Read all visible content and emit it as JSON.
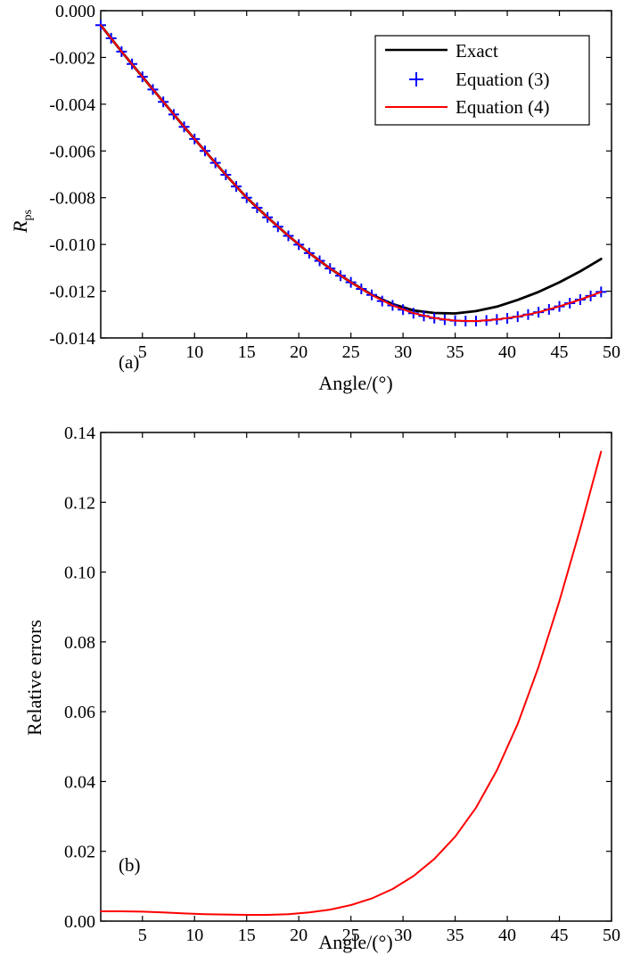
{
  "colors": {
    "exact": "#000000",
    "equation3": "#0000ff",
    "equation4": "#ff0000",
    "axis": "#000000",
    "background": "#ffffff"
  },
  "chart_data": [
    {
      "type": "line",
      "panel_label": "(a)",
      "xlabel": "Angle/(°)",
      "ylabel": "R",
      "ylabel_sub": "ps",
      "xlim": [
        1,
        50
      ],
      "ylim": [
        -0.014,
        0.0
      ],
      "xticks": [
        5,
        10,
        15,
        20,
        25,
        30,
        35,
        40,
        45,
        50
      ],
      "xtick_labels": [
        "5",
        "10",
        "15",
        "20",
        "25",
        "30",
        "35",
        "40",
        "45",
        "50"
      ],
      "yticks": [
        0.0,
        -0.002,
        -0.004,
        -0.006,
        -0.008,
        -0.01,
        -0.012,
        -0.014
      ],
      "ytick_labels": [
        "0.000",
        "-0.002",
        "-0.004",
        "-0.006",
        "-0.008",
        "-0.010",
        "-0.012",
        "-0.014"
      ],
      "grid": false,
      "legend_position": "top-right",
      "legend": [
        "Exact",
        "Equation (3)",
        "Equation (4)"
      ],
      "series": [
        {
          "name": "Exact",
          "style": "line",
          "x": [
            1,
            3,
            5,
            7,
            9,
            11,
            13,
            15,
            17,
            19,
            21,
            23,
            25,
            27,
            29,
            31,
            33,
            35,
            37,
            39,
            41,
            43,
            45,
            47,
            49
          ],
          "values": [
            -0.00062,
            -0.00175,
            -0.00283,
            -0.0039,
            -0.00497,
            -0.006,
            -0.00702,
            -0.008,
            -0.00884,
            -0.00963,
            -0.01037,
            -0.01103,
            -0.01162,
            -0.01215,
            -0.01255,
            -0.01282,
            -0.01293,
            -0.01295,
            -0.01285,
            -0.01266,
            -0.01237,
            -0.01203,
            -0.01162,
            -0.01115,
            -0.01062
          ]
        },
        {
          "name": "Equation (3)",
          "style": "markers",
          "marker": "+",
          "x": [
            1,
            2,
            3,
            4,
            5,
            6,
            7,
            8,
            9,
            10,
            11,
            12,
            13,
            14,
            15,
            16,
            17,
            18,
            19,
            20,
            21,
            22,
            23,
            24,
            25,
            26,
            27,
            28,
            29,
            30,
            31,
            32,
            33,
            34,
            35,
            36,
            37,
            38,
            39,
            40,
            41,
            42,
            43,
            44,
            45,
            46,
            47,
            48,
            49
          ],
          "values": [
            -0.00062,
            -0.00118,
            -0.00175,
            -0.00228,
            -0.00283,
            -0.00337,
            -0.0039,
            -0.00444,
            -0.00497,
            -0.00549,
            -0.006,
            -0.00651,
            -0.00702,
            -0.00752,
            -0.008,
            -0.00843,
            -0.00884,
            -0.00924,
            -0.00963,
            -0.01001,
            -0.01037,
            -0.0107,
            -0.01103,
            -0.01134,
            -0.01162,
            -0.0119,
            -0.01216,
            -0.01242,
            -0.01261,
            -0.01279,
            -0.01294,
            -0.01306,
            -0.01315,
            -0.01322,
            -0.01326,
            -0.01328,
            -0.01328,
            -0.01325,
            -0.01321,
            -0.01316,
            -0.01309,
            -0.013,
            -0.0129,
            -0.01278,
            -0.01265,
            -0.01251,
            -0.01236,
            -0.0122,
            -0.01203
          ]
        },
        {
          "name": "Equation (4)",
          "style": "line",
          "x": [
            1,
            3,
            5,
            7,
            9,
            11,
            13,
            15,
            17,
            19,
            21,
            23,
            25,
            27,
            29,
            31,
            33,
            35,
            37,
            39,
            41,
            43,
            45,
            47,
            49
          ],
          "values": [
            -0.00062,
            -0.00175,
            -0.00283,
            -0.0039,
            -0.00497,
            -0.006,
            -0.00702,
            -0.008,
            -0.00884,
            -0.00963,
            -0.01037,
            -0.01103,
            -0.01162,
            -0.01216,
            -0.01261,
            -0.01294,
            -0.01315,
            -0.01326,
            -0.01328,
            -0.01321,
            -0.01309,
            -0.0129,
            -0.01265,
            -0.01236,
            -0.01203
          ]
        }
      ]
    },
    {
      "type": "line",
      "panel_label": "(b)",
      "xlabel": "Angle/(°)",
      "ylabel": "Relative errors",
      "xlim": [
        1,
        50
      ],
      "ylim": [
        0.0,
        0.14
      ],
      "xticks": [
        5,
        10,
        15,
        20,
        25,
        30,
        35,
        40,
        45,
        50
      ],
      "xtick_labels": [
        "5",
        "10",
        "15",
        "20",
        "25",
        "30",
        "35",
        "40",
        "45",
        "50"
      ],
      "yticks": [
        0.0,
        0.02,
        0.04,
        0.06,
        0.08,
        0.1,
        0.12,
        0.14
      ],
      "ytick_labels": [
        "0.00",
        "0.02",
        "0.04",
        "0.06",
        "0.08",
        "0.10",
        "0.12",
        "0.14"
      ],
      "grid": false,
      "series": [
        {
          "name": "Relative errors",
          "style": "line",
          "x": [
            1,
            3,
            5,
            7,
            9,
            11,
            13,
            15,
            17,
            19,
            21,
            23,
            25,
            27,
            29,
            31,
            33,
            35,
            37,
            39,
            41,
            43,
            45,
            47,
            49
          ],
          "values": [
            0.0028,
            0.0028,
            0.0027,
            0.0025,
            0.0022,
            0.002,
            0.0019,
            0.0018,
            0.0018,
            0.002,
            0.0025,
            0.0033,
            0.0046,
            0.0065,
            0.0092,
            0.0129,
            0.0178,
            0.0242,
            0.0325,
            0.0432,
            0.0565,
            0.0728,
            0.0917,
            0.1124,
            0.1345
          ]
        }
      ]
    }
  ]
}
